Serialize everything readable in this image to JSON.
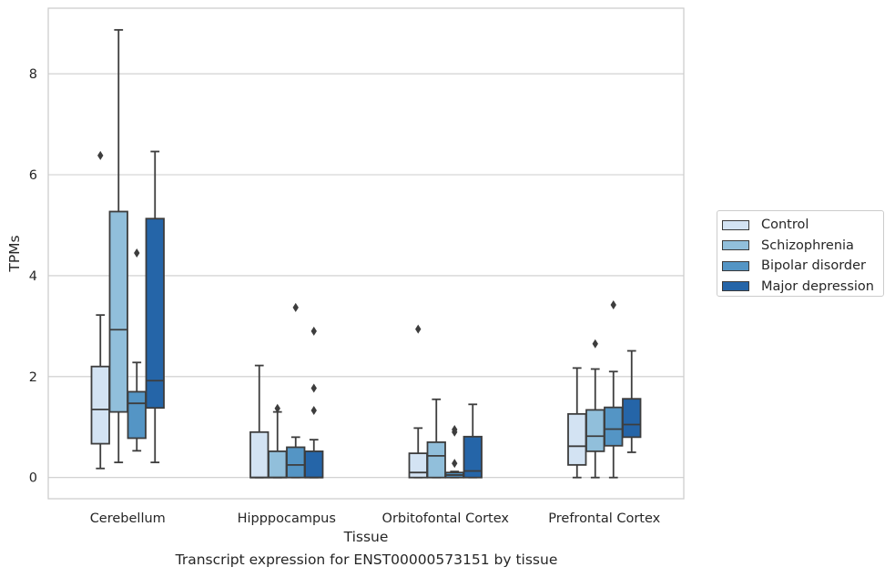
{
  "caption": "Transcript expression for ENST00000573151 by tissue",
  "legend": {
    "items": [
      {
        "label": "Control",
        "color": "#d3e3f3"
      },
      {
        "label": "Schizophrenia",
        "color": "#91bfdb"
      },
      {
        "label": "Bipolar disorder",
        "color": "#5495c5"
      },
      {
        "label": "Major depression",
        "color": "#2565a8"
      }
    ]
  },
  "chart_data": {
    "type": "box",
    "xlabel": "Tissue",
    "ylabel": "TPMs",
    "ylim": [
      -0.42,
      9.3
    ],
    "yticks": [
      0,
      2,
      4,
      6,
      8
    ],
    "grid": true,
    "legend_position": "right",
    "categories": [
      "Cerebellum",
      "Hipppocampus",
      "Orbitofontal Cortex",
      "Prefrontal Cortex"
    ],
    "series": [
      {
        "name": "Control",
        "color": "#d3e3f3",
        "boxes": [
          {
            "whisker_low": 0.18,
            "q1": 0.67,
            "median": 1.35,
            "q3": 2.2,
            "whisker_high": 3.22,
            "outliers": [
              6.38
            ]
          },
          {
            "whisker_low": 0.0,
            "q1": 0.0,
            "median": 0.0,
            "q3": 0.9,
            "whisker_high": 2.22,
            "outliers": []
          },
          {
            "whisker_low": 0.0,
            "q1": 0.0,
            "median": 0.1,
            "q3": 0.48,
            "whisker_high": 0.98,
            "outliers": [
              2.94
            ]
          },
          {
            "whisker_low": 0.0,
            "q1": 0.25,
            "median": 0.62,
            "q3": 1.26,
            "whisker_high": 2.17,
            "outliers": []
          }
        ]
      },
      {
        "name": "Schizophrenia",
        "color": "#91bfdb",
        "boxes": [
          {
            "whisker_low": 0.3,
            "q1": 1.3,
            "median": 2.93,
            "q3": 5.27,
            "whisker_high": 8.87,
            "outliers": []
          },
          {
            "whisker_low": 0.0,
            "q1": 0.0,
            "median": 0.0,
            "q3": 0.52,
            "whisker_high": 1.3,
            "outliers": [
              1.37
            ]
          },
          {
            "whisker_low": 0.0,
            "q1": 0.0,
            "median": 0.43,
            "q3": 0.7,
            "whisker_high": 1.55,
            "outliers": []
          },
          {
            "whisker_low": 0.0,
            "q1": 0.52,
            "median": 0.82,
            "q3": 1.34,
            "whisker_high": 2.15,
            "outliers": [
              2.65
            ]
          }
        ]
      },
      {
        "name": "Bipolar disorder",
        "color": "#5495c5",
        "boxes": [
          {
            "whisker_low": 0.53,
            "q1": 0.78,
            "median": 1.47,
            "q3": 1.7,
            "whisker_high": 2.28,
            "outliers": [
              4.45
            ]
          },
          {
            "whisker_low": 0.0,
            "q1": 0.0,
            "median": 0.25,
            "q3": 0.6,
            "whisker_high": 0.8,
            "outliers": [
              3.37
            ]
          },
          {
            "whisker_low": 0.0,
            "q1": 0.0,
            "median": 0.05,
            "q3": 0.1,
            "whisker_high": 0.12,
            "outliers": [
              0.28,
              0.9,
              0.95
            ]
          },
          {
            "whisker_low": 0.0,
            "q1": 0.63,
            "median": 0.96,
            "q3": 1.39,
            "whisker_high": 2.1,
            "outliers": [
              3.42
            ]
          }
        ]
      },
      {
        "name": "Major depression",
        "color": "#2565a8",
        "boxes": [
          {
            "whisker_low": 0.3,
            "q1": 1.38,
            "median": 1.92,
            "q3": 5.13,
            "whisker_high": 6.46,
            "outliers": []
          },
          {
            "whisker_low": 0.0,
            "q1": 0.0,
            "median": 0.0,
            "q3": 0.52,
            "whisker_high": 0.75,
            "outliers": [
              1.33,
              1.77,
              2.9
            ]
          },
          {
            "whisker_low": 0.0,
            "q1": 0.0,
            "median": 0.13,
            "q3": 0.81,
            "whisker_high": 1.45,
            "outliers": []
          },
          {
            "whisker_low": 0.5,
            "q1": 0.8,
            "median": 1.05,
            "q3": 1.56,
            "whisker_high": 2.51,
            "outliers": []
          }
        ]
      }
    ]
  }
}
